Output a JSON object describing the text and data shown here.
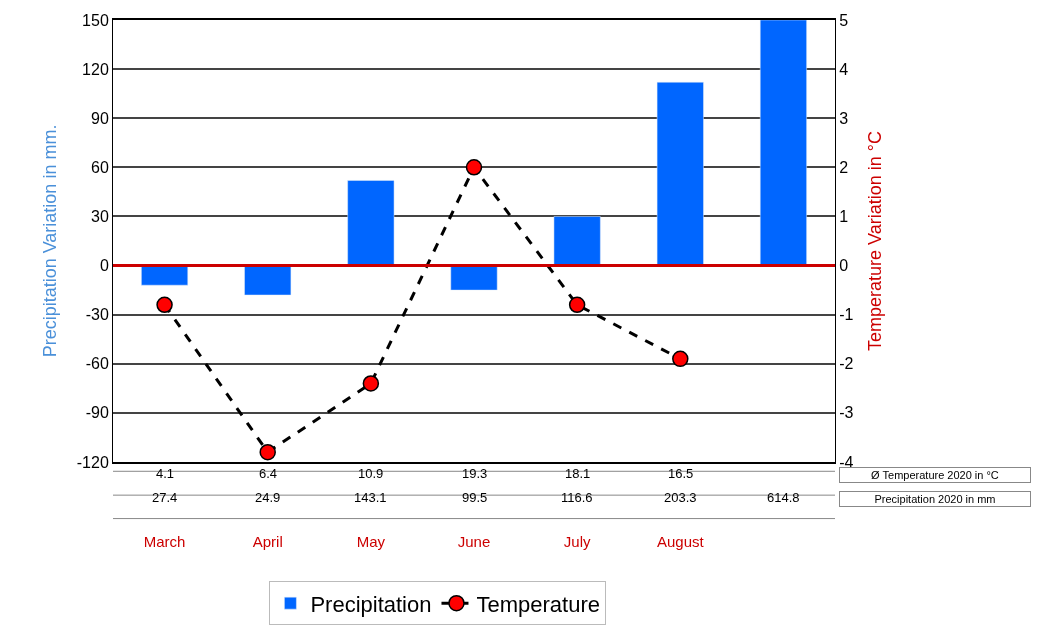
{
  "chart_data": {
    "type": "bar",
    "categories": [
      "March",
      "April",
      "May",
      "June",
      "July",
      "August",
      null
    ],
    "series": [
      {
        "name": "Precipitation",
        "color": "#0066ff",
        "values": [
          -12,
          -18,
          52,
          -15,
          30,
          112,
          150
        ]
      },
      {
        "name": "Temperature",
        "type": "line",
        "axis": "y2",
        "color": "#ff0000",
        "values": [
          -0.8,
          -3.8,
          -2.4,
          2.0,
          -0.8,
          -1.9,
          null
        ],
        "marker": "circle",
        "line_style": "dashed"
      }
    ],
    "ylabel": "Precipitation Variation in mm.",
    "y2label": "Temperature Variation in °C",
    "ylim": [
      -120,
      150
    ],
    "yticks": [
      -120,
      -90,
      -60,
      -30,
      0,
      30,
      60,
      90,
      120,
      150
    ],
    "y2lim": [
      -4,
      5
    ],
    "y2ticks": [
      -4,
      -3,
      -2,
      -1,
      0,
      1,
      2,
      3,
      4,
      5
    ],
    "ref_lines": [
      {
        "axis": "y",
        "value": 0,
        "color": "#cc0000"
      }
    ],
    "annotations": [
      "4.1",
      "6.4",
      "10.9",
      "19.3",
      "18.1",
      "16.5",
      "Ø Temperature 2020 in °C",
      "27.4",
      "24.9",
      "143.1",
      "99.5",
      "116.6",
      "203.3",
      "614.8",
      "Precipitation 2020 in mm"
    ],
    "grid": "y",
    "legend": "bottom"
  }
}
